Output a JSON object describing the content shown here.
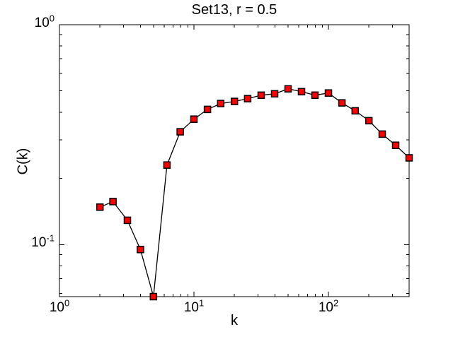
{
  "figure": {
    "title": "Set13, r = 0.5",
    "xlabel": "k",
    "ylabel": "C(k)"
  },
  "axes": {
    "x_tick_labels": [
      {
        "base": "10",
        "exp": "0",
        "value": 1
      },
      {
        "base": "10",
        "exp": "1",
        "value": 10
      },
      {
        "base": "10",
        "exp": "2",
        "value": 100
      }
    ],
    "y_tick_labels": [
      {
        "base": "10",
        "exp": "0",
        "value": 1
      },
      {
        "base": "10",
        "exp": "-1",
        "value": 0.1
      }
    ]
  },
  "colors": {
    "background": "#ffffff",
    "axis": "#000000",
    "line": "#000000",
    "marker_fill": "#ff0000",
    "marker_edge": "#000000",
    "text": "#000000"
  },
  "chart_data": {
    "type": "line",
    "title": "Set13, r = 0.5",
    "xlabel": "k",
    "ylabel": "C(k)",
    "xscale": "log",
    "yscale": "log",
    "xlim": [
      1,
      398
    ],
    "ylim": [
      0.058,
      1
    ],
    "grid": false,
    "legend": null,
    "marker": "square",
    "series": [
      {
        "name": "C(k)",
        "x": [
          2,
          2.5,
          3.2,
          4,
          5,
          6.3,
          7.9,
          10,
          12.6,
          15.8,
          20,
          25.1,
          31.6,
          39.8,
          50.1,
          63.1,
          79.4,
          100,
          126,
          158,
          200,
          251,
          316,
          398
        ],
        "y": [
          0.148,
          0.157,
          0.129,
          0.095,
          0.058,
          0.23,
          0.326,
          0.372,
          0.412,
          0.438,
          0.448,
          0.461,
          0.478,
          0.485,
          0.511,
          0.496,
          0.478,
          0.489,
          0.441,
          0.406,
          0.366,
          0.318,
          0.283,
          0.248
        ]
      }
    ]
  }
}
